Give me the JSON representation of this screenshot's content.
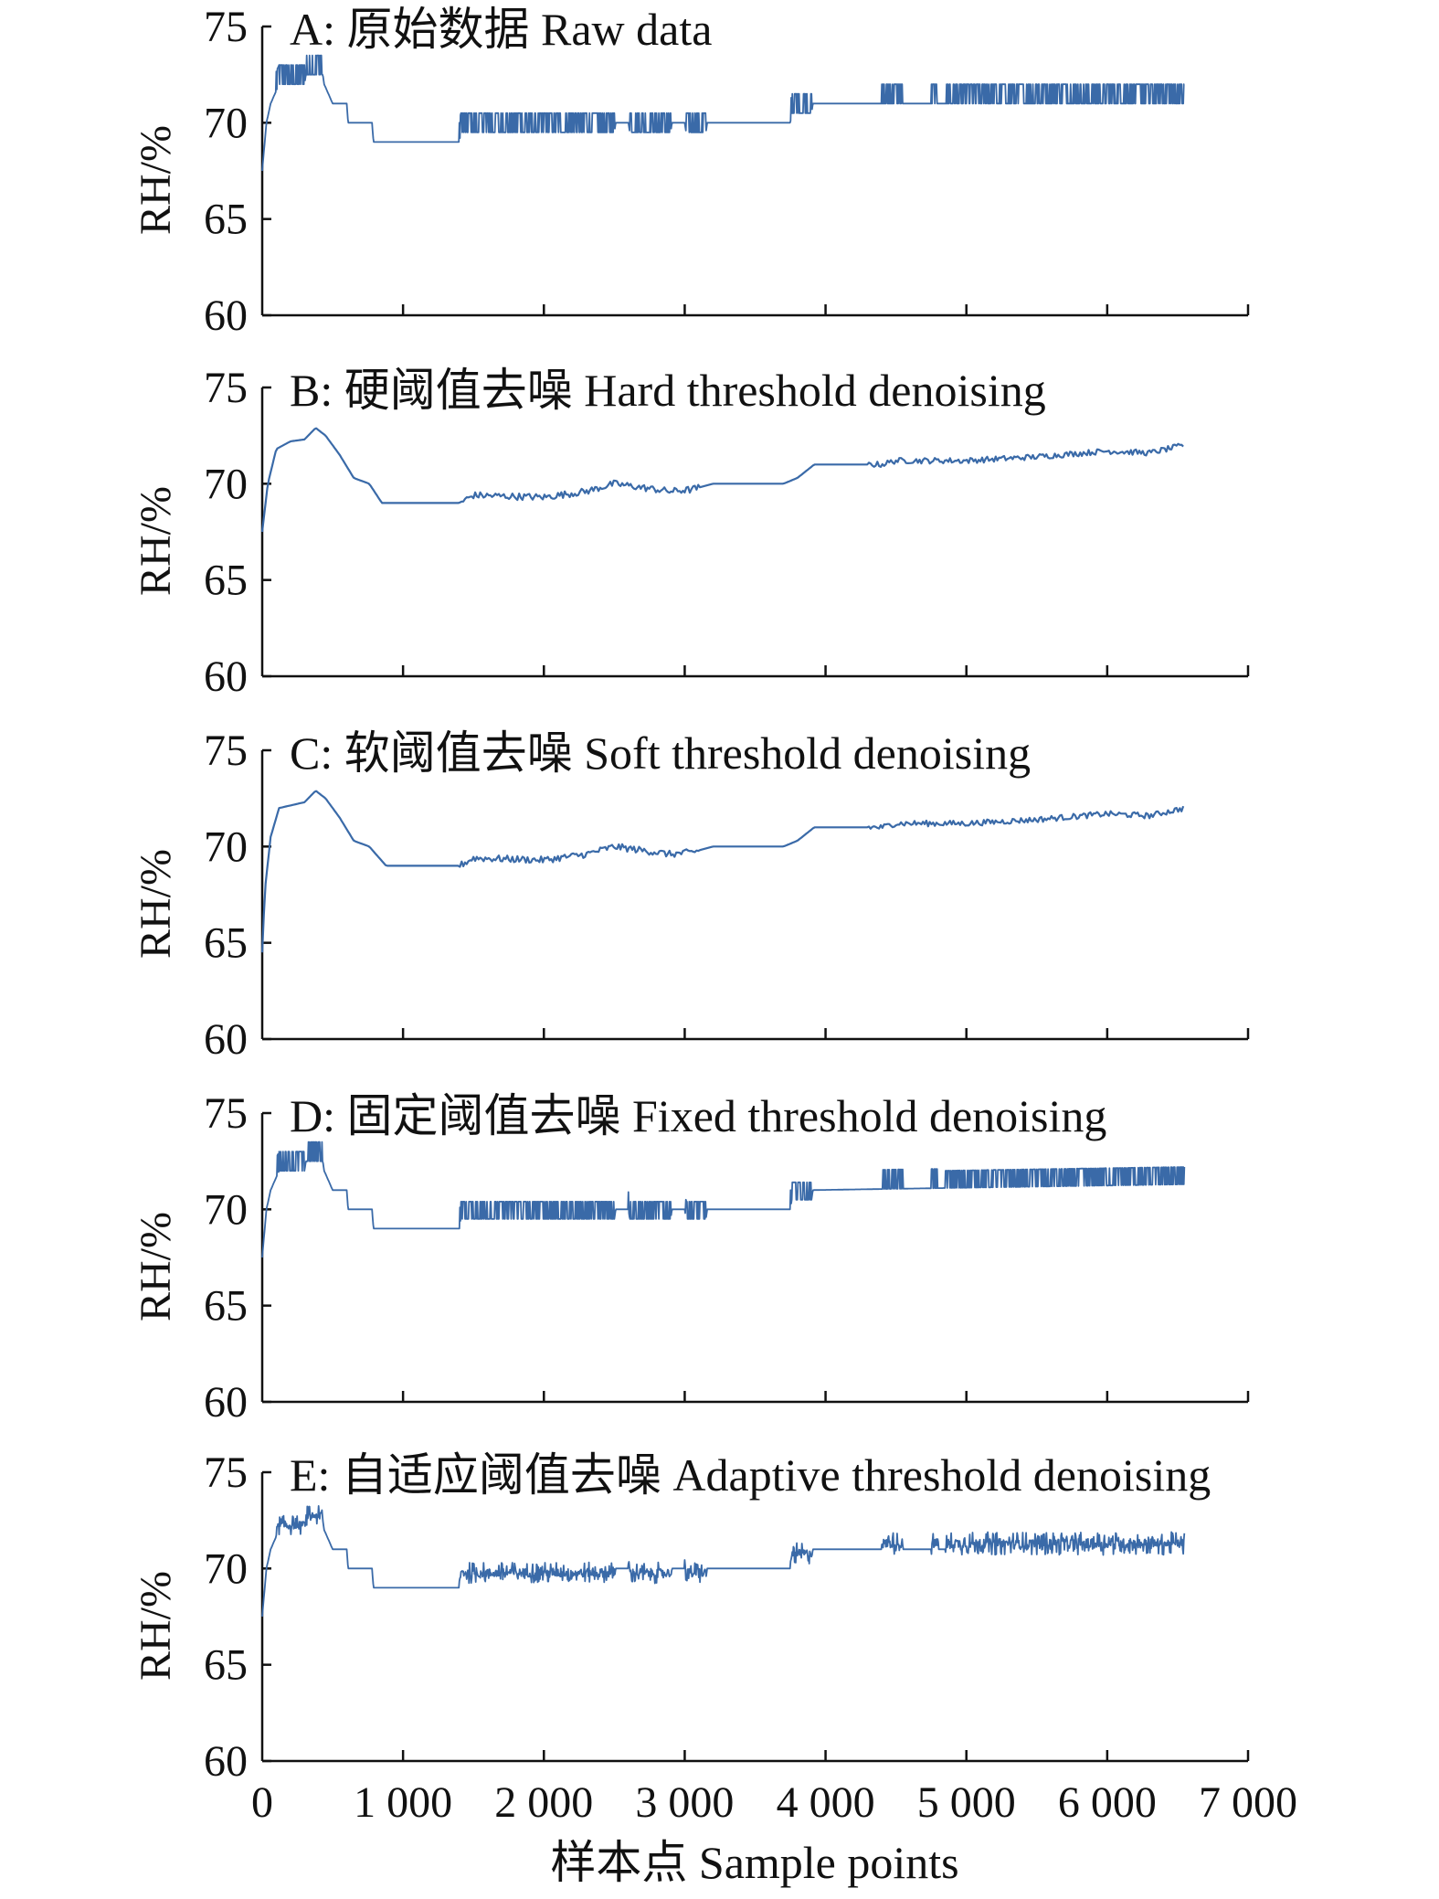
{
  "chart_data": {
    "type": "line",
    "xlabel": "样本点 Sample points",
    "ylabel": "RH/%",
    "xlim": [
      0,
      7000
    ],
    "ylim": [
      60,
      75
    ],
    "xticks": [
      0,
      1000,
      2000,
      3000,
      4000,
      5000,
      6000,
      7000
    ],
    "xtick_labels": [
      "0",
      "1 000",
      "2 000",
      "3 000",
      "4 000",
      "5 000",
      "6 000",
      "7 000"
    ],
    "yticks": [
      60,
      65,
      70,
      75
    ],
    "ytick_labels": [
      "60",
      "65",
      "70",
      "75"
    ],
    "line_color": "#3a6aa8",
    "panels": [
      {
        "title": "A: 原始数据 Raw data",
        "profile": [
          [
            0,
            67.5
          ],
          [
            30,
            70
          ],
          [
            60,
            71
          ],
          [
            120,
            72
          ],
          [
            300,
            72
          ],
          [
            310,
            72.5
          ],
          [
            430,
            72.5
          ],
          [
            440,
            72
          ],
          [
            500,
            71
          ],
          [
            600,
            71
          ],
          [
            610,
            70
          ],
          [
            780,
            70
          ],
          [
            790,
            69
          ],
          [
            1400,
            69
          ],
          [
            1410,
            69.5
          ],
          [
            2500,
            69.5
          ],
          [
            2510,
            70
          ],
          [
            2600,
            70
          ],
          [
            2610,
            69.5
          ],
          [
            2900,
            69.5
          ],
          [
            2910,
            70
          ],
          [
            3000,
            70
          ],
          [
            3010,
            69.5
          ],
          [
            3150,
            69.5
          ],
          [
            3160,
            70
          ],
          [
            3750,
            70
          ],
          [
            3760,
            70.5
          ],
          [
            3900,
            70.5
          ],
          [
            3910,
            71
          ],
          [
            6550,
            71
          ]
        ],
        "noise": [
          [
            100,
            300,
            0.5
          ],
          [
            310,
            430,
            0.5
          ],
          [
            1400,
            2500,
            0.5
          ],
          [
            2600,
            2900,
            0.5
          ],
          [
            3000,
            3150,
            0.5
          ],
          [
            3750,
            3900,
            0.5
          ],
          [
            4400,
            4550,
            0.5
          ],
          [
            4750,
            4800,
            0.5
          ],
          [
            4850,
            6550,
            0.5
          ]
        ],
        "noise_style": "band"
      },
      {
        "title": "B: 硬阈值去噪 Hard threshold denoising",
        "profile": [
          [
            0,
            67.5
          ],
          [
            40,
            70
          ],
          [
            100,
            71.8
          ],
          [
            200,
            72.2
          ],
          [
            300,
            72.3
          ],
          [
            380,
            72.9
          ],
          [
            450,
            72.5
          ],
          [
            550,
            71.5
          ],
          [
            650,
            70.3
          ],
          [
            760,
            70
          ],
          [
            850,
            69
          ],
          [
            1400,
            69
          ],
          [
            1500,
            69.4
          ],
          [
            2000,
            69.3
          ],
          [
            2300,
            69.6
          ],
          [
            2500,
            70
          ],
          [
            2700,
            69.8
          ],
          [
            2900,
            69.6
          ],
          [
            3050,
            69.7
          ],
          [
            3200,
            70
          ],
          [
            3700,
            70
          ],
          [
            3800,
            70.3
          ],
          [
            3920,
            71
          ],
          [
            4400,
            71
          ],
          [
            4500,
            71.2
          ],
          [
            5000,
            71.2
          ],
          [
            5500,
            71.4
          ],
          [
            6000,
            71.7
          ],
          [
            6300,
            71.6
          ],
          [
            6550,
            72
          ]
        ],
        "noise": [
          [
            1400,
            3100,
            0.18
          ],
          [
            4300,
            6550,
            0.15
          ]
        ],
        "noise_style": "jitter"
      },
      {
        "title": "C: 软阈值去噪 Soft threshold denoising",
        "profile": [
          [
            0,
            64.5
          ],
          [
            20,
            67.8
          ],
          [
            60,
            70.5
          ],
          [
            120,
            72
          ],
          [
            300,
            72.3
          ],
          [
            380,
            72.9
          ],
          [
            450,
            72.5
          ],
          [
            550,
            71.5
          ],
          [
            650,
            70.3
          ],
          [
            760,
            70
          ],
          [
            880,
            69
          ],
          [
            1400,
            69
          ],
          [
            1500,
            69.4
          ],
          [
            2000,
            69.3
          ],
          [
            2300,
            69.6
          ],
          [
            2500,
            70
          ],
          [
            2700,
            69.8
          ],
          [
            2900,
            69.6
          ],
          [
            3050,
            69.7
          ],
          [
            3200,
            70
          ],
          [
            3700,
            70
          ],
          [
            3800,
            70.3
          ],
          [
            3920,
            71
          ],
          [
            4400,
            71
          ],
          [
            4500,
            71.2
          ],
          [
            5000,
            71.2
          ],
          [
            5500,
            71.4
          ],
          [
            6000,
            71.7
          ],
          [
            6300,
            71.6
          ],
          [
            6550,
            72
          ]
        ],
        "noise": [
          [
            1400,
            3100,
            0.18
          ],
          [
            4300,
            6550,
            0.15
          ]
        ],
        "noise_style": "jitter"
      },
      {
        "title": "D: 固定阈值去噪 Fixed threshold denoising",
        "profile": [
          [
            0,
            67.5
          ],
          [
            30,
            70
          ],
          [
            60,
            71
          ],
          [
            120,
            72
          ],
          [
            300,
            72
          ],
          [
            310,
            72.5
          ],
          [
            430,
            72.5
          ],
          [
            440,
            72
          ],
          [
            500,
            71
          ],
          [
            600,
            71
          ],
          [
            610,
            70
          ],
          [
            780,
            70
          ],
          [
            790,
            69
          ],
          [
            1400,
            69
          ],
          [
            1410,
            69.5
          ],
          [
            2500,
            69.5
          ],
          [
            2510,
            70
          ],
          [
            2600,
            70
          ],
          [
            2610,
            69.5
          ],
          [
            2900,
            69.5
          ],
          [
            2910,
            70
          ],
          [
            3000,
            70
          ],
          [
            3010,
            69.5
          ],
          [
            3150,
            69.5
          ],
          [
            3160,
            70
          ],
          [
            3750,
            70
          ],
          [
            3760,
            70.5
          ],
          [
            3900,
            70.5
          ],
          [
            3910,
            71
          ],
          [
            6550,
            71.3
          ]
        ],
        "noise": [
          [
            100,
            300,
            0.5
          ],
          [
            310,
            430,
            0.5
          ],
          [
            1400,
            2500,
            0.45
          ],
          [
            2600,
            2900,
            0.45
          ],
          [
            3000,
            3150,
            0.45
          ],
          [
            3750,
            3900,
            0.45
          ],
          [
            4400,
            4550,
            0.5
          ],
          [
            4750,
            4800,
            0.5
          ],
          [
            4850,
            6550,
            0.45
          ]
        ],
        "noise_style": "band"
      },
      {
        "title": "E: 自适应阈值去噪 Adaptive threshold denoising",
        "profile": [
          [
            0,
            67.5
          ],
          [
            30,
            70
          ],
          [
            60,
            71
          ],
          [
            120,
            72
          ],
          [
            300,
            72
          ],
          [
            310,
            72.5
          ],
          [
            430,
            72.5
          ],
          [
            440,
            72
          ],
          [
            500,
            71
          ],
          [
            600,
            71
          ],
          [
            610,
            70
          ],
          [
            780,
            70
          ],
          [
            790,
            69
          ],
          [
            1400,
            69
          ],
          [
            1410,
            69.5
          ],
          [
            2500,
            69.5
          ],
          [
            2510,
            70
          ],
          [
            2600,
            70
          ],
          [
            2610,
            69.5
          ],
          [
            2900,
            69.5
          ],
          [
            2910,
            70
          ],
          [
            3000,
            70
          ],
          [
            3010,
            69.5
          ],
          [
            3150,
            69.5
          ],
          [
            3160,
            70
          ],
          [
            3750,
            70
          ],
          [
            3760,
            70.5
          ],
          [
            3900,
            70.5
          ],
          [
            3910,
            71
          ],
          [
            6550,
            71
          ]
        ],
        "noise": [
          [
            100,
            300,
            0.5
          ],
          [
            310,
            430,
            0.5
          ],
          [
            1400,
            2500,
            0.55
          ],
          [
            2600,
            2900,
            0.55
          ],
          [
            3000,
            3150,
            0.55
          ],
          [
            3750,
            3900,
            0.55
          ],
          [
            4400,
            4550,
            0.6
          ],
          [
            4750,
            4800,
            0.6
          ],
          [
            4850,
            6550,
            0.6
          ]
        ],
        "noise_style": "spiky"
      }
    ]
  }
}
